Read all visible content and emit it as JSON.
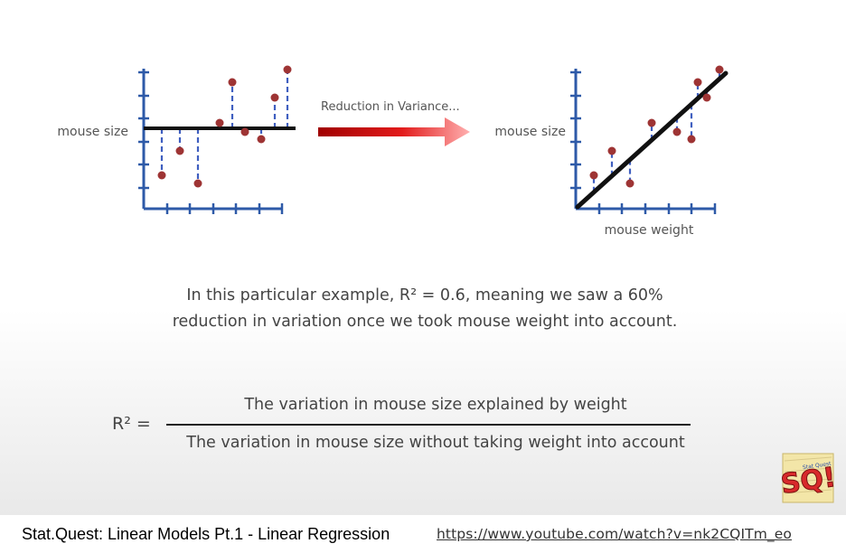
{
  "left_plot": {
    "y_label": "mouse size"
  },
  "arrow": {
    "label": "Reduction in Variance..."
  },
  "right_plot": {
    "y_label": "mouse size",
    "x_label": "mouse weight"
  },
  "example": {
    "line1": "In this particular example, R² = 0.6, meaning we saw a 60%",
    "line2": "reduction in variation once we took mouse weight into account."
  },
  "formula": {
    "lhs": "R² =",
    "numerator": "The variation in mouse size explained by weight",
    "denominator": "The variation in mouse size without taking weight into account"
  },
  "logo": {
    "text": "SQ!",
    "small_text": "Stat Quest"
  },
  "caption": {
    "title": "Stat.Quest: Linear Models Pt.1 - Linear Regression",
    "link": "https://www.youtube.com/watch?v=nk2CQITm_eo"
  },
  "colors": {
    "point": "#9e3434",
    "residual": "#3f5fc0",
    "axis": "#2e5aa8",
    "arrow": "#e21b1b"
  }
}
